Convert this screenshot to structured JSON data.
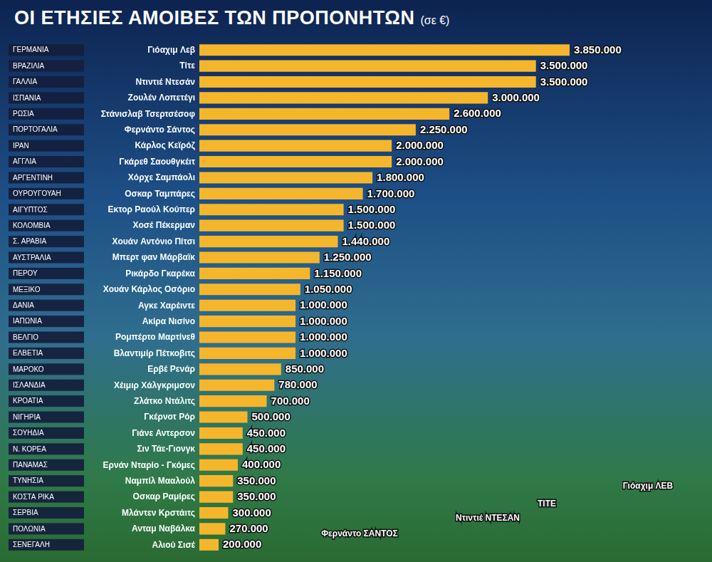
{
  "chart_data": {
    "type": "bar",
    "orientation": "horizontal",
    "title": "ΟΙ ΕΤΗΣΙΕΣ ΑΜΟΙΒΕΣ ΤΩΝ ΠΡΟΠΟΝΗΤΩΝ",
    "subtitle": "(σε €)",
    "categories": [
      "Γιόαχιμ Λεβ",
      "Τίτε",
      "Ντιντιέ Ντεσάν",
      "Ζουλέν Λοπετέγι",
      "Στάνισλαβ Τσερτσέσοφ",
      "Φερνάντο Σάντος",
      "Κάρλος Κεϊρόζ",
      "Γκάρεθ Σαουθγκέιτ",
      "Χόρχε Σαμπάολι",
      "Οσκαρ Ταμπάρες",
      "Εκτορ Ραούλ Κούπερ",
      "Χοσέ Πέκερμαν",
      "Χουάν Αντόνιο Πίτσι",
      "Μπερτ φαν Μάρβαϊκ",
      "Ρικάρδο Γκαρέκα",
      "Χουάν Κάρλος Οσόριο",
      "Αγκε Χαρέιντε",
      "Ακίρα Νισίνο",
      "Ρομπέρτο Μαρτίνεθ",
      "Βλαντιμίρ Πέτκοβιτς",
      "Ερβέ Ρενάρ",
      "Χέιμιρ Χάλγκριμσον",
      "Ζλάτκο Ντάλιτς",
      "Γκέρνοτ Ρόρ",
      "Γιάνε Αντερσον",
      "Σιν Τάε-Γιονγκ",
      "Ερνάν Νταρίο - Γκόμες",
      "Ναμπίλ Μααλούλ",
      "Οσκαρ Ραμίρες",
      "Μλάντεν Κρστάιτς",
      "Ανταμ Ναβάλκα",
      "Αλιού Σισέ"
    ],
    "countries": [
      "ΓΕΡΜΑΝΙΑ",
      "ΒΡΑΖΙΛΙΑ",
      "ΓΑΛΛΙΑ",
      "ΙΣΠΑΝΙΑ",
      "ΡΩΣΙΑ",
      "ΠΟΡΤΟΓΑΛΙΑ",
      "ΙΡΑΝ",
      "ΑΓΓΛΙΑ",
      "ΑΡΓΕΝΤΙΝΗ",
      "ΟΥΡΟΥΓΟΥΑΗ",
      "ΑΙΓΥΠΤΟΣ",
      "ΚΟΛΟΜΒΙΑ",
      "Σ. ΑΡΑΒΙΑ",
      "ΑΥΣΤΡΑΛΙΑ",
      "ΠΕΡΟΥ",
      "ΜΕΞΙΚΟ",
      "ΔΑΝΙΑ",
      "ΙΑΠΩΝΙΑ",
      "ΒΕΛΓΙΟ",
      "ΕΛΒΕΤΙΑ",
      "ΜΑΡΟΚΟ",
      "ΙΣΛΑΝΔΙΑ",
      "ΚΡΟΑΤΙΑ",
      "ΝΙΓΗΡΙΑ",
      "ΣΟΥΗΔΙΑ",
      "Ν. ΚΟΡΕΑ",
      "ΠΑΝΑΜΑΣ",
      "ΤΥΝΗΣΙΑ",
      "ΚΟΣΤΑ ΡΙΚΑ",
      "ΣΕΡΒΙΑ",
      "ΠΟΛΩΝΙΑ",
      "ΣΕΝΕΓΑΛΗ"
    ],
    "values": [
      3850000,
      3500000,
      3500000,
      3000000,
      2600000,
      2250000,
      2000000,
      2000000,
      1800000,
      1700000,
      1500000,
      1500000,
      1440000,
      1250000,
      1150000,
      1050000,
      1000000,
      1000000,
      1000000,
      1000000,
      850000,
      780000,
      700000,
      500000,
      450000,
      450000,
      400000,
      350000,
      350000,
      300000,
      270000,
      200000
    ],
    "value_labels": [
      "3.850.000",
      "3.500.000",
      "3.500.000",
      "3.000.000",
      "2.600.000",
      "2.250.000",
      "2.000.000",
      "2.000.000",
      "1.800.000",
      "1.700.000",
      "1.500.000",
      "1.500.000",
      "1.440.000",
      "1.250.000",
      "1.150.000",
      "1.050.000",
      "1.000.000",
      "1.000.000",
      "1.000.000",
      "1.000.000",
      "850.000",
      "780.000",
      "700.000",
      "500.000",
      "450.000",
      "450.000",
      "400.000",
      "350.000",
      "350.000",
      "300.000",
      "270.000",
      "200.000"
    ],
    "color": "#f6b62c",
    "xlim": [
      0,
      3850000
    ],
    "data_labels": true,
    "grid": false,
    "tick_labels": "y",
    "annotations": [
      "Φερνάντο ΣΑΝΤΟΣ",
      "Ντιντιέ ΝΤΕΣΑΝ",
      "ΤΙΤΕ",
      "Γιόαχιμ ΛΕΒ"
    ]
  }
}
